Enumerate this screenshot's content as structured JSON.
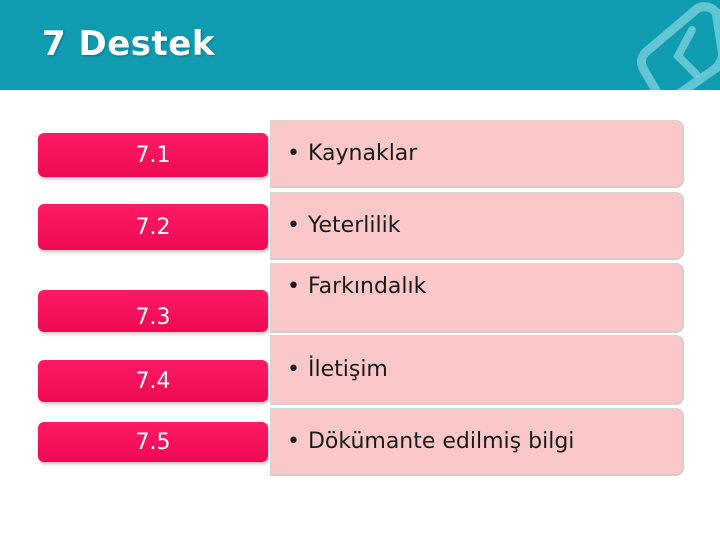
{
  "header": {
    "title": "7 Destek",
    "logo_icon": "tse-logo-icon",
    "background_color": "#0f9bb0"
  },
  "rows": [
    {
      "number": "7.1",
      "label": "Kaynaklar"
    },
    {
      "number": "7.2",
      "label": "Yeterlilik"
    },
    {
      "number": "7.3",
      "label": "Farkındalık"
    },
    {
      "number": "7.4",
      "label": "İletişim"
    },
    {
      "number": "7.5",
      "label": "Dökümante edilmiş bilgi"
    }
  ],
  "colors": {
    "number_box": "#ff1a63",
    "content_box": "#fbc8c9"
  }
}
